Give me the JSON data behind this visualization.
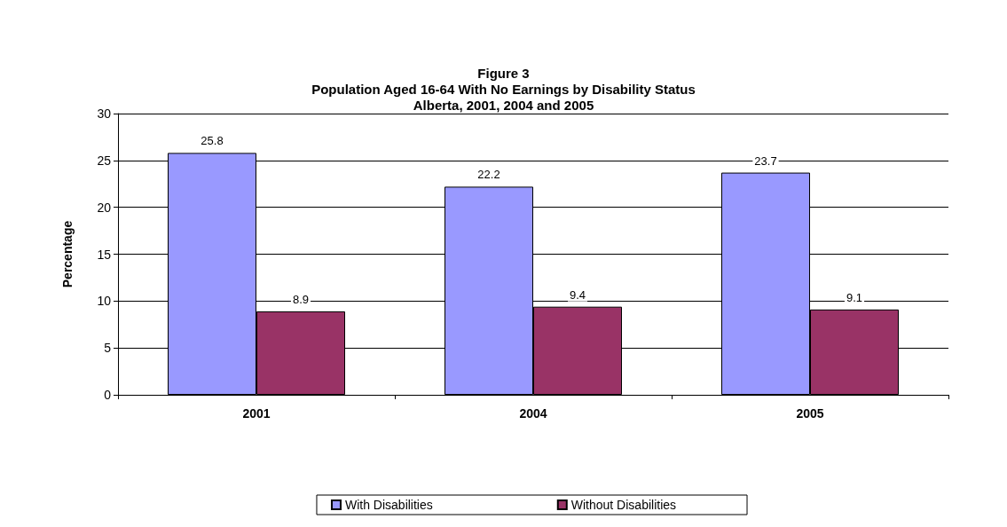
{
  "chart_data": {
    "type": "bar",
    "title": "Figure 3",
    "subtitle": "Population Aged 16-64 With No Earnings by Disability Status\nAlberta, 2001, 2004 and 2005",
    "ylabel": "Percentage",
    "categories": [
      "2001",
      "2004",
      "2005"
    ],
    "series": [
      {
        "name": "With Disabilities",
        "color": "#9999ff",
        "values": [
          25.8,
          22.2,
          23.7
        ]
      },
      {
        "name": "Without Disabilities",
        "color": "#993366",
        "values": [
          8.9,
          9.4,
          9.1
        ]
      }
    ],
    "ylim": [
      0,
      30
    ],
    "yticks": [
      0,
      5,
      10,
      15,
      20,
      25,
      30
    ],
    "grid": "y",
    "legend": "bottom",
    "data_labels": true
  }
}
